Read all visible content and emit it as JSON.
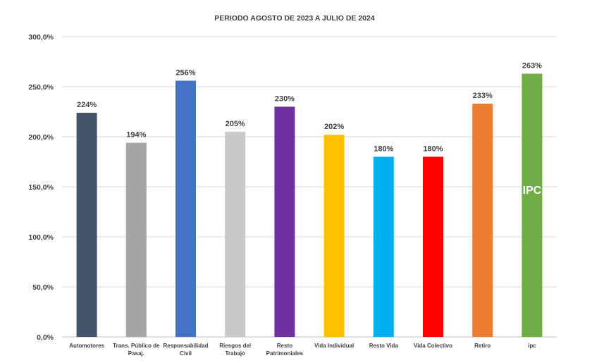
{
  "chart_data": {
    "type": "bar",
    "title": "PERIODO AGOSTO DE 2023 A JULIO DE 2024",
    "xlabel": "",
    "ylabel": "",
    "ylim": [
      0,
      300
    ],
    "grid": true,
    "legend": "none",
    "y_ticks": [
      {
        "value": 0,
        "label": "0,0%"
      },
      {
        "value": 50,
        "label": "50,0%"
      },
      {
        "value": 100,
        "label": "100,0%"
      },
      {
        "value": 150,
        "label": "150,0%"
      },
      {
        "value": 200,
        "label": "200,0%"
      },
      {
        "value": 250,
        "label": "250,0%"
      },
      {
        "value": 300,
        "label": "300,0%"
      }
    ],
    "bars": [
      {
        "category": [
          "Automotores"
        ],
        "value": 224,
        "label": "224%",
        "color": "#44546A"
      },
      {
        "category": [
          "Trans. Público de",
          "Pasaj."
        ],
        "value": 194,
        "label": "194%",
        "color": "#A5A5A5"
      },
      {
        "category": [
          "Responsabilidad",
          "Civil"
        ],
        "value": 256,
        "label": "256%",
        "color": "#4472C4"
      },
      {
        "category": [
          "Riesgos del",
          "Trabajo"
        ],
        "value": 205,
        "label": "205%",
        "color": "#C9C9C9"
      },
      {
        "category": [
          "Resto",
          "Patrimoniales"
        ],
        "value": 230,
        "label": "230%",
        "color": "#7030A0"
      },
      {
        "category": [
          "Vida Individual"
        ],
        "value": 202,
        "label": "202%",
        "color": "#FFC000"
      },
      {
        "category": [
          "Resto Vida"
        ],
        "value": 180,
        "label": "180%",
        "color": "#00B0F0"
      },
      {
        "category": [
          "Vida Colectivo"
        ],
        "value": 180,
        "label": "180%",
        "color": "#FF0000"
      },
      {
        "category": [
          "Retiro"
        ],
        "value": 233,
        "label": "233%",
        "color": "#ED7D31"
      },
      {
        "category": [
          "ipc"
        ],
        "value": 263,
        "label": "263%",
        "color": "#70AD47",
        "inner_label": "IPC"
      }
    ]
  }
}
